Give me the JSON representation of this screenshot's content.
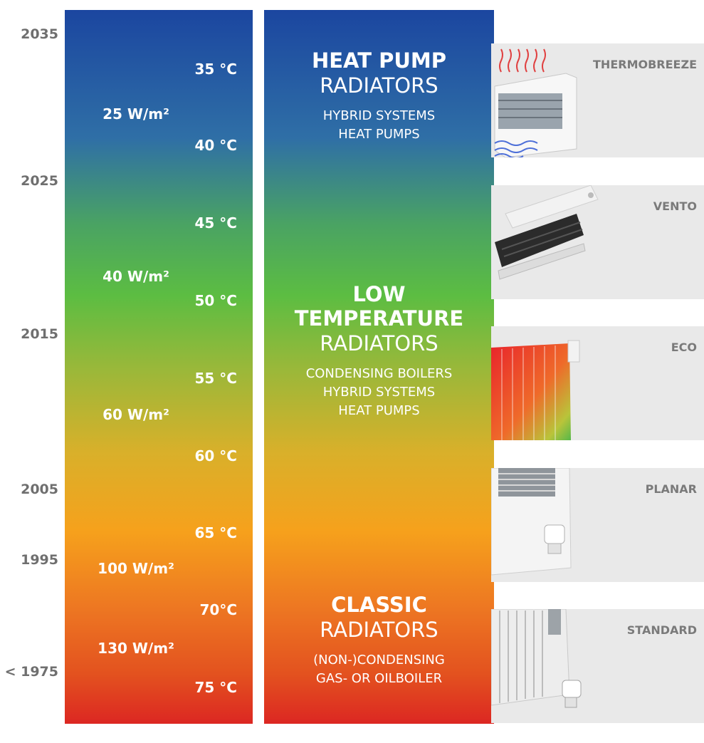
{
  "years": [
    "2035",
    "2025",
    "2015",
    "2005",
    "1995",
    "< 1975"
  ],
  "watts": [
    "25 W/m²",
    "40 W/m²",
    "60 W/m²",
    "100 W/m²",
    "130 W/m²"
  ],
  "temps": [
    "35 °C",
    "40 °C",
    "45 °C",
    "50 °C",
    "55 °C",
    "60 °C",
    "65 °C",
    "70°C",
    "75 °C"
  ],
  "sections": [
    {
      "heading": "HEAT PUMP",
      "sub": "RADIATORS",
      "lines": [
        "HYBRID SYSTEMS",
        "HEAT PUMPS"
      ]
    },
    {
      "heading_1": "LOW",
      "heading_2": "TEMPERATURE",
      "sub": "RADIATORS",
      "lines": [
        "CONDENSING BOILERS",
        "HYBRID SYSTEMS",
        "HEAT PUMPS"
      ]
    },
    {
      "heading": "CLASSIC",
      "sub": "RADIATORS",
      "lines": [
        "(NON-)CONDENSING",
        "GAS- OR OILBOILER"
      ]
    }
  ],
  "products": [
    "THERMOBREEZE",
    "VENTO",
    "ECO",
    "PLANAR",
    "STANDARD"
  ],
  "colors": {
    "top": "#1b46a0",
    "middle": "#5cbd42",
    "lower": "#f6a11c",
    "bottom": "#dc2722",
    "year_text": "#6f6f6f",
    "product_bg": "#e9e9e9"
  }
}
